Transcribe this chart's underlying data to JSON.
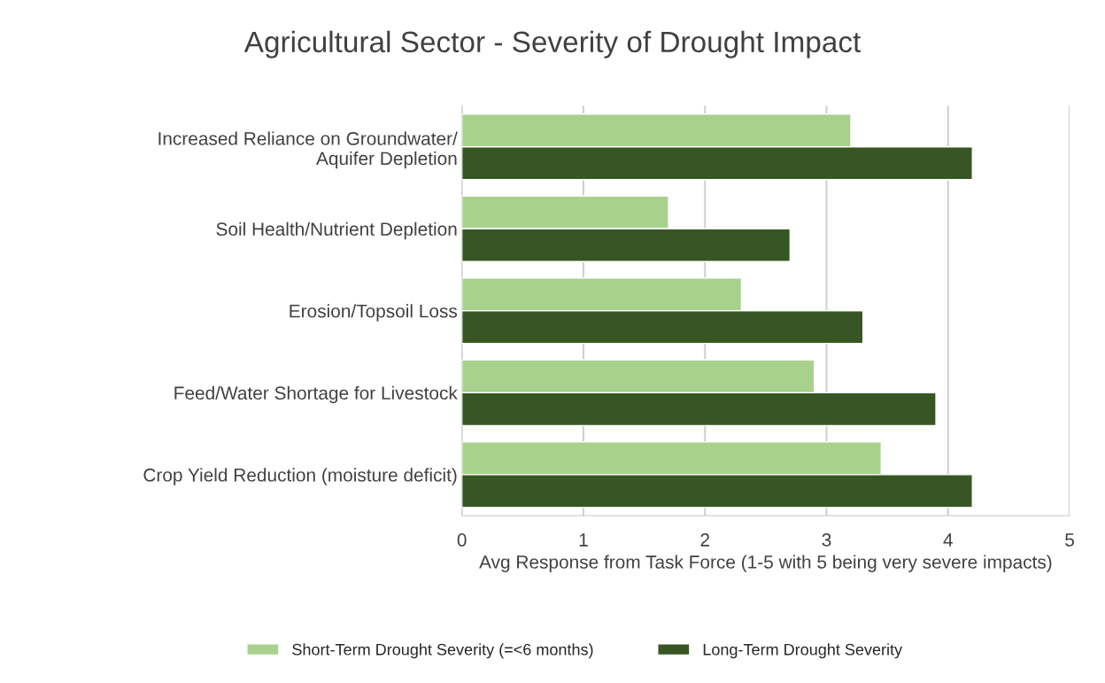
{
  "chart_data": {
    "type": "bar",
    "orientation": "horizontal",
    "title": "Agricultural Sector - Severity of Drought Impact",
    "xlabel": "Avg Response from Task Force (1-5 with 5 being very severe impacts)",
    "categories": [
      "Increased Reliance on Groundwater/\nAquifer Depletion",
      "Soil Health/Nutrient Depletion",
      "Erosion/Topsoil Loss",
      "Feed/Water Shortage for Livestock",
      "Crop Yield Reduction (moisture deficit)"
    ],
    "series": [
      {
        "name": "Short-Term Drought Severity (=<6 months)",
        "color": "#a9d18e",
        "values": [
          3.2,
          1.7,
          2.3,
          2.9,
          3.45
        ]
      },
      {
        "name": "Long-Term Drought Severity",
        "color": "#375623",
        "values": [
          4.2,
          2.7,
          3.3,
          3.9,
          4.2
        ]
      }
    ],
    "xlim": [
      0,
      5
    ],
    "xticks": [
      0,
      1,
      2,
      3,
      4,
      5
    ],
    "grid": "x",
    "legend": "bottom"
  }
}
